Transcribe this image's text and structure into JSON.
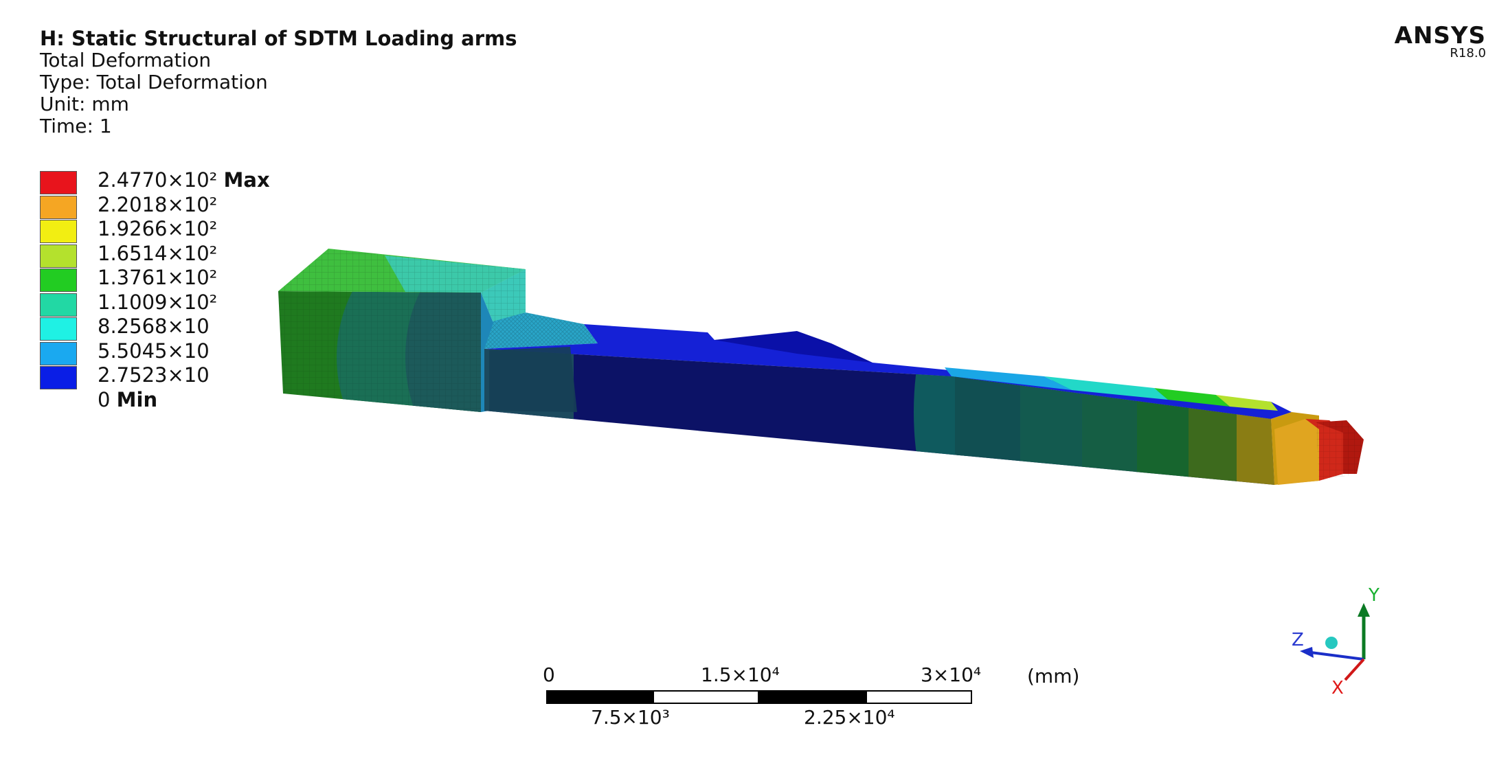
{
  "header": {
    "title": "H: Static Structural of  SDTM Loading arms",
    "result": "Total Deformation",
    "type": "Type: Total Deformation",
    "unit": "Unit: mm",
    "time": "Time: 1"
  },
  "brand": {
    "name": "ANSYS",
    "version": "R18.0"
  },
  "legend": {
    "items": [
      {
        "label": "2.4770×10²",
        "tag": "Max",
        "color": "#e8141c"
      },
      {
        "label": "2.2018×10²",
        "tag": "",
        "color": "#f5a623"
      },
      {
        "label": "1.9266×10²",
        "tag": "",
        "color": "#f2ee12"
      },
      {
        "label": "1.6514×10²",
        "tag": "",
        "color": "#b4e12d"
      },
      {
        "label": "1.3761×10²",
        "tag": "",
        "color": "#22cc22"
      },
      {
        "label": "1.1009×10²",
        "tag": "",
        "color": "#22d8a4"
      },
      {
        "label": "8.2568×10",
        "tag": "",
        "color": "#1ff1e4"
      },
      {
        "label": "5.5045×10",
        "tag": "",
        "color": "#1aa9f0"
      },
      {
        "label": "2.7523×10",
        "tag": "",
        "color": "#0a1ee6"
      },
      {
        "label": "0",
        "tag": "Min",
        "color": "#0a1ee6"
      }
    ]
  },
  "scale_bar": {
    "top_labels": [
      "0",
      "1.5×10⁴",
      "3×10⁴"
    ],
    "bottom_labels": [
      "7.5×10³",
      "2.25×10⁴"
    ],
    "unit": "(mm)"
  },
  "triad": {
    "x": "X",
    "y": "Y",
    "z": "Z"
  }
}
